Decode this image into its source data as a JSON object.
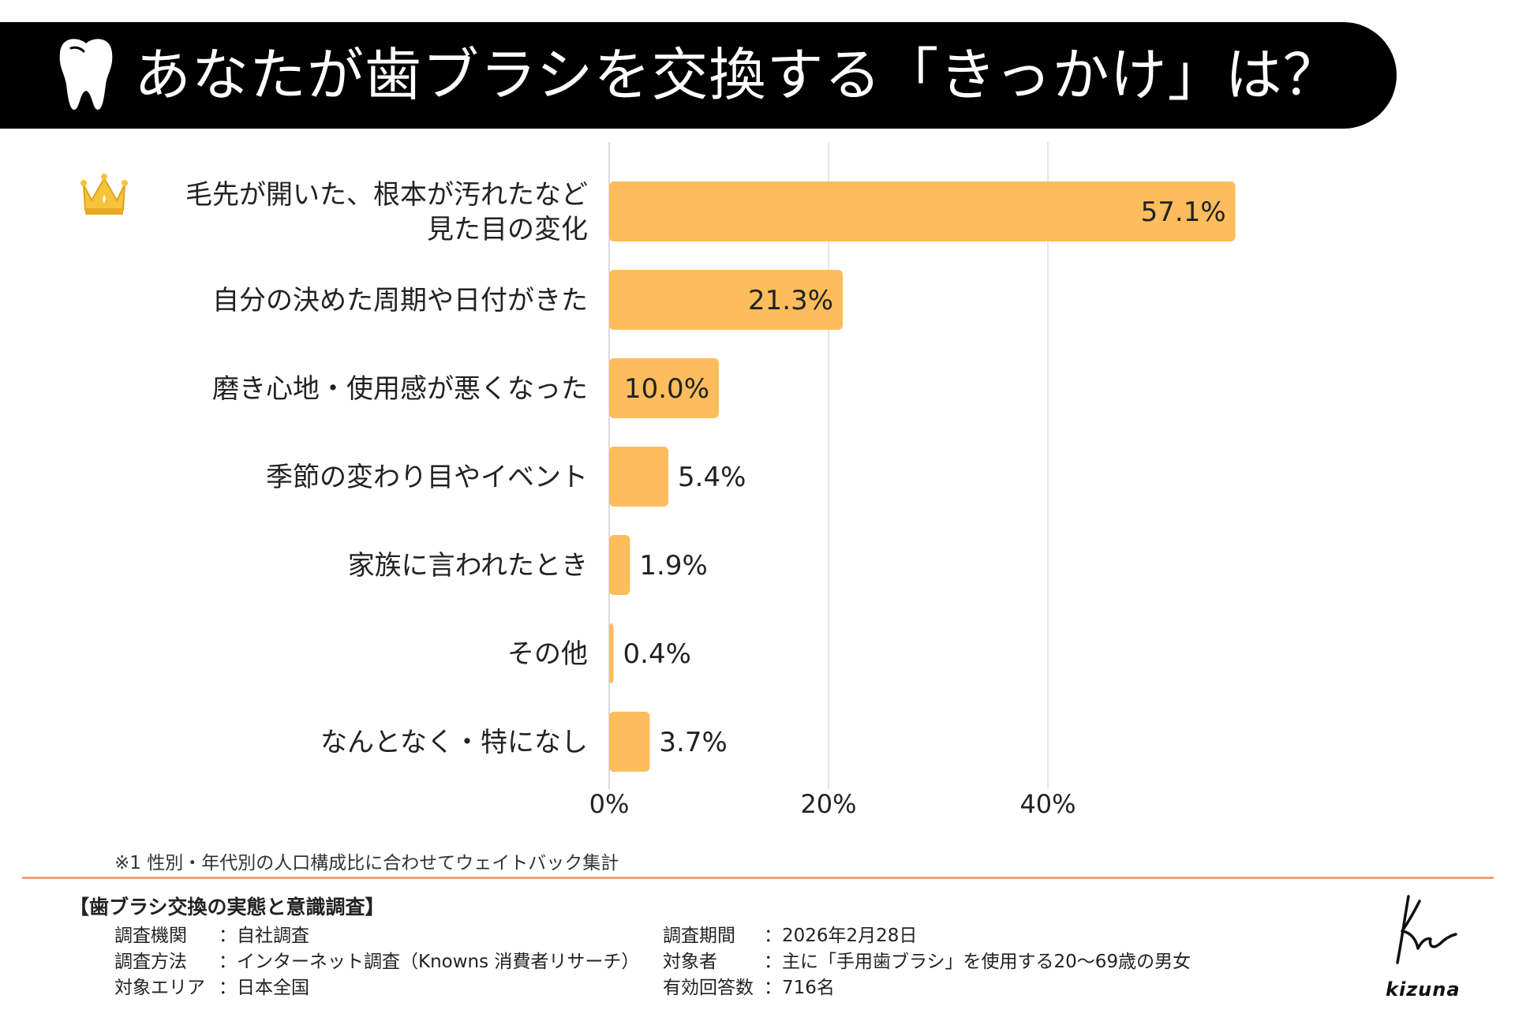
{
  "header": {
    "title": "あなたが歯ブラシを交換する「きっかけ」は？",
    "icon": "tooth-icon"
  },
  "chart_data": {
    "type": "bar",
    "orientation": "horizontal",
    "title": "あなたが歯ブラシを交換する「きっかけ」は？",
    "categories": [
      [
        "毛先が開いた、根本が汚れたなど",
        "見た目の変化"
      ],
      [
        "自分の決めた周期や日付がきた"
      ],
      [
        "磨き心地・使用感が悪くなった"
      ],
      [
        "季節の変わり目やイベント"
      ],
      [
        "家族に言われたとき"
      ],
      [
        "その他"
      ],
      [
        "なんとなく・特になし"
      ]
    ],
    "values": [
      57.1,
      21.3,
      10.0,
      5.4,
      1.9,
      0.4,
      3.7
    ],
    "value_labels": [
      "57.1%",
      "21.3%",
      "10.0%",
      "5.4%",
      "1.9%",
      "0.4%",
      "3.7%"
    ],
    "xlim": [
      0,
      60
    ],
    "xticks": [
      0,
      20,
      40
    ],
    "xtick_labels": [
      "0%",
      "20%",
      "40%"
    ],
    "grid": true,
    "bar_color": "#fdbd5c",
    "gridline_color": "#dddddd",
    "top_item_icon": "crown-icon"
  },
  "footnote": "※1 性別・年代別の人口構成比に合わせてウェイトバック集計",
  "study": {
    "title": "【歯ブラシ交換の実態と意識調査】",
    "left": [
      {
        "key": "調査機関",
        "value": "：自社調査"
      },
      {
        "key": "調査方法",
        "value": "：インターネット調査（Knowns 消費者リサーチ）"
      },
      {
        "key": "対象エリア",
        "value": "：日本全国"
      }
    ],
    "right": [
      {
        "key": "調査期間",
        "value": "：2026年2月28日"
      },
      {
        "key": "対象者",
        "value": "：主に「手用歯ブラシ」を使用する20～69歳の男女"
      },
      {
        "key": "有効回答数",
        "value": "：716名"
      }
    ]
  },
  "brand": {
    "name": "kizuna"
  },
  "colors": {
    "accent": "#fdbd5c",
    "title_bg": "#000000",
    "divider": "#f0a070"
  }
}
